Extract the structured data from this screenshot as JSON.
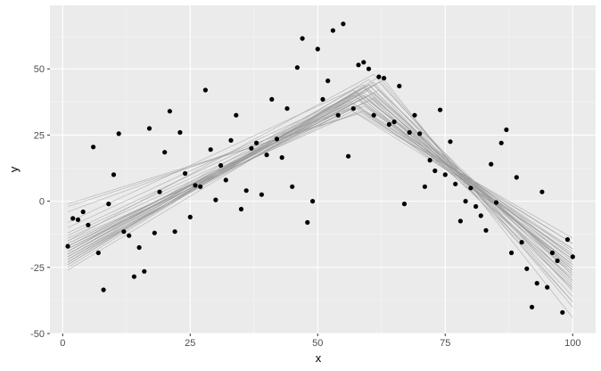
{
  "chart_data": {
    "type": "scatter",
    "xlabel": "x",
    "ylabel": "y",
    "xlim": [
      -2.5,
      104.5
    ],
    "ylim": [
      -50,
      74
    ],
    "x_ticks": [
      0,
      25,
      50,
      75,
      100
    ],
    "y_ticks": [
      -50,
      -25,
      0,
      25,
      50
    ],
    "grid": true,
    "legend": "none",
    "colors": {
      "panel_background": "#ebebeb",
      "grid_major": "#ffffff",
      "grid_minor": "#f5f5f5",
      "points": "#000000",
      "fit_lines": "#999999"
    },
    "points": [
      [
        1,
        -17
      ],
      [
        2,
        -6.5
      ],
      [
        3,
        -7
      ],
      [
        4,
        -4
      ],
      [
        5,
        -9
      ],
      [
        6,
        20.5
      ],
      [
        7,
        -19.5
      ],
      [
        8,
        -33.5
      ],
      [
        9,
        -1
      ],
      [
        10,
        10
      ],
      [
        11,
        25.5
      ],
      [
        12,
        -11.5
      ],
      [
        13,
        -13
      ],
      [
        14,
        -28.5
      ],
      [
        15,
        -17.5
      ],
      [
        16,
        -26.5
      ],
      [
        17,
        27.5
      ],
      [
        18,
        -12
      ],
      [
        19,
        3.5
      ],
      [
        20,
        18.5
      ],
      [
        21,
        34
      ],
      [
        22,
        -11.5
      ],
      [
        23,
        26
      ],
      [
        24,
        10.5
      ],
      [
        25,
        -6
      ],
      [
        26,
        6
      ],
      [
        27,
        5.5
      ],
      [
        28,
        42
      ],
      [
        29,
        19.5
      ],
      [
        30,
        0.5
      ],
      [
        31,
        13.5
      ],
      [
        32,
        8
      ],
      [
        33,
        23
      ],
      [
        34,
        32.5
      ],
      [
        35,
        -3
      ],
      [
        36,
        4
      ],
      [
        37,
        20
      ],
      [
        38,
        22
      ],
      [
        39,
        2.5
      ],
      [
        40,
        17.5
      ],
      [
        41,
        38.5
      ],
      [
        42,
        23.5
      ],
      [
        43,
        16.5
      ],
      [
        44,
        35
      ],
      [
        45,
        5.5
      ],
      [
        46,
        50.5
      ],
      [
        47,
        61.5
      ],
      [
        48,
        -8
      ],
      [
        49,
        0
      ],
      [
        50,
        57.5
      ],
      [
        51,
        38.5
      ],
      [
        52,
        45.5
      ],
      [
        53,
        64.5
      ],
      [
        54,
        32.5
      ],
      [
        55,
        67
      ],
      [
        56,
        17
      ],
      [
        57,
        35
      ],
      [
        58,
        51.5
      ],
      [
        59,
        52.5
      ],
      [
        60,
        50
      ],
      [
        61,
        32.5
      ],
      [
        62,
        47
      ],
      [
        63,
        46.5
      ],
      [
        64,
        29
      ],
      [
        65,
        30
      ],
      [
        66,
        43.5
      ],
      [
        67,
        -1
      ],
      [
        68,
        26
      ],
      [
        69,
        32.5
      ],
      [
        70,
        25.5
      ],
      [
        71,
        5.5
      ],
      [
        72,
        15.5
      ],
      [
        73,
        11.5
      ],
      [
        74,
        34.5
      ],
      [
        75,
        10
      ],
      [
        76,
        22.5
      ],
      [
        77,
        6.5
      ],
      [
        78,
        -7.5
      ],
      [
        79,
        0
      ],
      [
        80,
        5
      ],
      [
        81,
        -2
      ],
      [
        82,
        -5.5
      ],
      [
        83,
        -11
      ],
      [
        84,
        14
      ],
      [
        85,
        -0.5
      ],
      [
        86,
        22
      ],
      [
        87,
        27
      ],
      [
        88,
        -19.5
      ],
      [
        89,
        9
      ],
      [
        90,
        -15.5
      ],
      [
        91,
        -25.5
      ],
      [
        92,
        -40
      ],
      [
        93,
        -31
      ],
      [
        94,
        3.5
      ],
      [
        95,
        -32.5
      ],
      [
        96,
        -19.5
      ],
      [
        97,
        -22.5
      ],
      [
        98,
        -42
      ],
      [
        99,
        -14.5
      ],
      [
        100,
        -21
      ]
    ],
    "fit_lines": [
      [
        [
          1,
          -20
        ],
        [
          59,
          40
        ],
        [
          100,
          -25
        ]
      ],
      [
        [
          1,
          -18
        ],
        [
          58,
          38
        ],
        [
          100,
          -24
        ]
      ],
      [
        [
          1,
          -22
        ],
        [
          60,
          42
        ],
        [
          100,
          -28
        ]
      ],
      [
        [
          1,
          -16
        ],
        [
          57,
          36
        ],
        [
          100,
          -20
        ]
      ],
      [
        [
          1,
          -21
        ],
        [
          61,
          44
        ],
        [
          100,
          -30
        ]
      ],
      [
        [
          1,
          -19
        ],
        [
          59,
          41
        ],
        [
          100,
          -26
        ]
      ],
      [
        [
          1,
          -23
        ],
        [
          62,
          45
        ],
        [
          100,
          -34
        ]
      ],
      [
        [
          1,
          -17
        ],
        [
          58,
          39
        ],
        [
          100,
          -22
        ]
      ],
      [
        [
          1,
          -24
        ],
        [
          60,
          46
        ],
        [
          100,
          -38
        ]
      ],
      [
        [
          1,
          -14
        ],
        [
          56,
          35
        ],
        [
          100,
          -18
        ]
      ],
      [
        [
          1,
          -20
        ],
        [
          59,
          43
        ],
        [
          100,
          -31
        ]
      ],
      [
        [
          1,
          -22
        ],
        [
          61,
          41
        ],
        [
          100,
          -27
        ]
      ],
      [
        [
          1,
          -18
        ],
        [
          59,
          37
        ],
        [
          100,
          -21
        ]
      ],
      [
        [
          1,
          -25
        ],
        [
          62,
          47
        ],
        [
          100,
          -40
        ]
      ],
      [
        [
          1,
          -15
        ],
        [
          58,
          34
        ],
        [
          100,
          -16
        ]
      ],
      [
        [
          1,
          -21
        ],
        [
          60,
          40
        ],
        [
          100,
          -23
        ]
      ],
      [
        [
          1,
          -19
        ],
        [
          57,
          42
        ],
        [
          100,
          -29
        ]
      ],
      [
        [
          1,
          -23
        ],
        [
          60,
          44
        ],
        [
          100,
          -33
        ]
      ],
      [
        [
          1,
          -17
        ],
        [
          59,
          36
        ],
        [
          100,
          -19
        ]
      ],
      [
        [
          1,
          -26
        ],
        [
          63,
          46
        ],
        [
          100,
          -44
        ]
      ],
      [
        [
          1,
          -20
        ],
        [
          58,
          41
        ],
        [
          100,
          -24
        ]
      ],
      [
        [
          1,
          -18
        ],
        [
          61,
          39
        ],
        [
          100,
          -26
        ]
      ],
      [
        [
          1,
          -22
        ],
        [
          59,
          43
        ],
        [
          100,
          -30
        ]
      ],
      [
        [
          1,
          -16
        ],
        [
          60,
          38
        ],
        [
          100,
          -21
        ]
      ],
      [
        [
          1,
          -24
        ],
        [
          61,
          45
        ],
        [
          100,
          -36
        ]
      ],
      [
        [
          1,
          -19
        ],
        [
          58,
          40
        ],
        [
          100,
          -25
        ]
      ],
      [
        [
          1,
          -21
        ],
        [
          62,
          42
        ],
        [
          100,
          -28
        ]
      ],
      [
        [
          1,
          -17
        ],
        [
          57,
          37
        ],
        [
          100,
          -20
        ]
      ],
      [
        [
          1,
          -23
        ],
        [
          60,
          44
        ],
        [
          100,
          -32
        ]
      ],
      [
        [
          1,
          -20
        ],
        [
          59,
          40
        ],
        [
          100,
          -27
        ]
      ],
      [
        [
          1,
          -1
        ],
        [
          58,
          33
        ],
        [
          100,
          -14
        ]
      ],
      [
        [
          1,
          -2
        ],
        [
          59,
          34
        ],
        [
          100,
          -16
        ]
      ],
      [
        [
          1,
          -12
        ],
        [
          56,
          38
        ],
        [
          100,
          -22
        ]
      ],
      [
        [
          1,
          -10
        ],
        [
          57,
          40
        ],
        [
          100,
          -24
        ]
      ],
      [
        [
          1,
          -4
        ],
        [
          58,
          36
        ],
        [
          100,
          -18
        ]
      ],
      [
        [
          1,
          -13
        ],
        [
          60,
          40
        ],
        [
          100,
          -33
        ]
      ],
      [
        [
          1,
          -15
        ],
        [
          61,
          48
        ],
        [
          100,
          -38
        ]
      ],
      [
        [
          1,
          -8
        ],
        [
          59,
          44
        ],
        [
          100,
          -26
        ]
      ]
    ]
  }
}
